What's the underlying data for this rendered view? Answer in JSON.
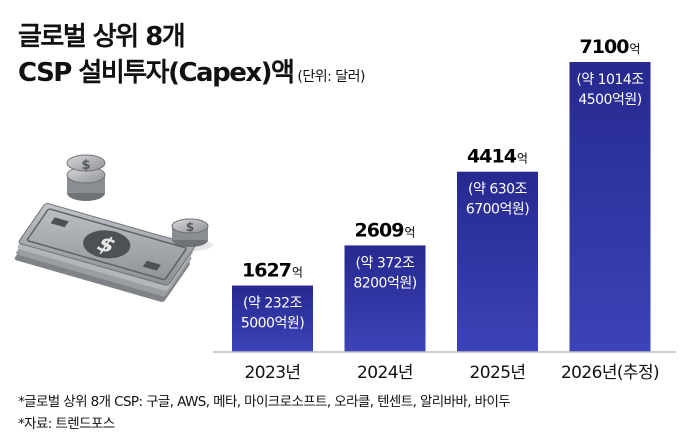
{
  "header": {
    "title_line1": "글로벌 상위 8개",
    "title_line2": "CSP 설비투자(Capex)액",
    "unit_note": "(단위: 달러)"
  },
  "chart_data": {
    "type": "bar",
    "title": "글로벌 상위 8개 CSP 설비투자(Capex)액",
    "unit": "억 달러",
    "categories": [
      "2023년",
      "2024년",
      "2025년",
      "2026년(추정)"
    ],
    "values": [
      1627,
      2609,
      4414,
      7100
    ],
    "value_labels": [
      "1627",
      "2609",
      "4414",
      "7100"
    ],
    "value_unit_label": "억",
    "krw_notes": [
      [
        "(약 232조",
        "5000억원)"
      ],
      [
        "(약 372조",
        "8200억원)"
      ],
      [
        "(약 630조",
        "6700억원)"
      ],
      [
        "(약 1014조",
        "4500억원)"
      ]
    ],
    "ylim": [
      0,
      7100
    ],
    "grid": false,
    "legend": "none",
    "colors": {
      "bar_top": "#2b2f9a",
      "bar_bottom": "#3e44b8",
      "note_text": "#ffffff"
    }
  },
  "illustration": {
    "icon": "money-stack-coins-icon"
  },
  "footer": {
    "footnote_companies": "*글로벌 상위 8개 CSP: 구글, AWS, 메타, 마이크로소프트, 오라클, 텐센트, 알리바바, 바이두",
    "footnote_source": "*자료: 트렌드포스"
  }
}
